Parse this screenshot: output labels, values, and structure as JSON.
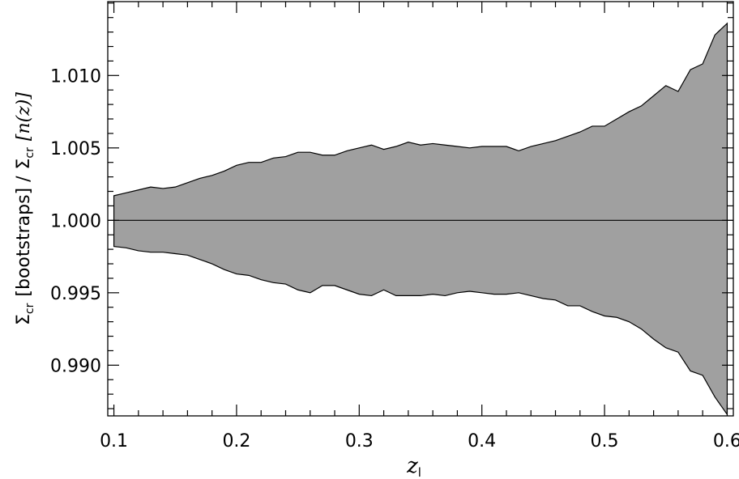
{
  "chart_data": {
    "type": "area",
    "title": "",
    "xlabel": "z",
    "xlabel_sub": "l",
    "ylabel": {
      "sigma": "Σ",
      "cr": "cr",
      "left": "[bootstraps] /",
      "n_open": "[n(",
      "n_var": "z",
      "n_close": ")]"
    },
    "xlim": [
      0.095,
      0.605
    ],
    "ylim": [
      0.9865,
      1.0151
    ],
    "xticks": [
      "0.1",
      "0.2",
      "0.3",
      "0.4",
      "0.5",
      "0.6"
    ],
    "yticks": [
      "0.990",
      "0.995",
      "1.000",
      "1.005",
      "1.010"
    ],
    "grid": false,
    "fill_color": "#a0a0a0",
    "reference_line": 1.0,
    "series": [
      {
        "name": "",
        "x": [
          0.1,
          0.11,
          0.12,
          0.13,
          0.14,
          0.15,
          0.16,
          0.17,
          0.18,
          0.19,
          0.2,
          0.21,
          0.22,
          0.23,
          0.24,
          0.25,
          0.26,
          0.27,
          0.28,
          0.29,
          0.3,
          0.31,
          0.32,
          0.33,
          0.34,
          0.35,
          0.36,
          0.37,
          0.38,
          0.39,
          0.4,
          0.41,
          0.42,
          0.43,
          0.44,
          0.45,
          0.46,
          0.47,
          0.48,
          0.49,
          0.5,
          0.51,
          0.52,
          0.53,
          0.54,
          0.55,
          0.56,
          0.57,
          0.58,
          0.59,
          0.6
        ],
        "upper": [
          1.0017,
          1.0019,
          1.0021,
          1.0023,
          1.0022,
          1.0023,
          1.0026,
          1.0029,
          1.0031,
          1.0034,
          1.0038,
          1.004,
          1.004,
          1.0043,
          1.0044,
          1.0047,
          1.0047,
          1.0045,
          1.0045,
          1.0048,
          1.005,
          1.0052,
          1.0049,
          1.0051,
          1.0054,
          1.0052,
          1.0053,
          1.0052,
          1.0051,
          1.005,
          1.0051,
          1.0051,
          1.0051,
          1.0048,
          1.0051,
          1.0053,
          1.0055,
          1.0058,
          1.0061,
          1.0065,
          1.0065,
          1.007,
          1.0075,
          1.0079,
          1.0086,
          1.0093,
          1.0089,
          1.0104,
          1.0108,
          1.0128,
          1.0136
        ],
        "lower": [
          0.9982,
          0.9981,
          0.9979,
          0.9978,
          0.9978,
          0.9977,
          0.9976,
          0.9973,
          0.997,
          0.9966,
          0.9963,
          0.9962,
          0.9959,
          0.9957,
          0.9956,
          0.9952,
          0.995,
          0.9955,
          0.9955,
          0.9952,
          0.9949,
          0.9948,
          0.9952,
          0.9948,
          0.9948,
          0.9948,
          0.9949,
          0.9948,
          0.995,
          0.9951,
          0.995,
          0.9949,
          0.9949,
          0.995,
          0.9948,
          0.9946,
          0.9945,
          0.9941,
          0.9941,
          0.9937,
          0.9934,
          0.9933,
          0.993,
          0.9925,
          0.9918,
          0.9912,
          0.9909,
          0.9896,
          0.9893,
          0.9878,
          0.9866
        ]
      }
    ]
  }
}
